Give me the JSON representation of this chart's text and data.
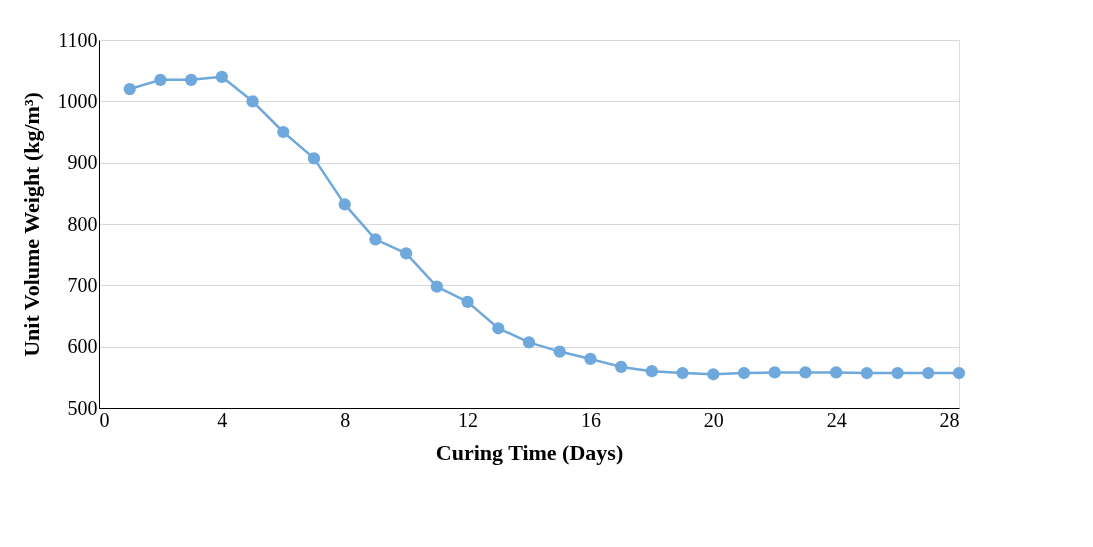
{
  "chart_data": {
    "type": "line",
    "xlabel": "Curing Time (Days)",
    "ylabel": "Unit Volume Weight (kg/m³)",
    "x": [
      1,
      2,
      3,
      4,
      5,
      6,
      7,
      8,
      9,
      10,
      11,
      12,
      13,
      14,
      15,
      16,
      17,
      18,
      19,
      20,
      21,
      22,
      23,
      24,
      25,
      26,
      27,
      28
    ],
    "series": [
      {
        "color": "#6fa8dc",
        "values": [
          1020,
          1035,
          1035,
          1040,
          1000,
          950,
          907,
          832,
          775,
          752,
          698,
          673,
          630,
          607,
          592,
          580,
          567,
          560,
          557,
          555,
          557,
          558,
          558,
          558,
          557,
          557,
          557,
          557
        ]
      }
    ],
    "xlim": [
      0,
      28
    ],
    "xticks": [
      0,
      4,
      8,
      12,
      16,
      20,
      24,
      28
    ],
    "ylim": [
      500,
      1100
    ],
    "yticks": [
      500,
      600,
      700,
      800,
      900,
      1000,
      1100
    ],
    "grid": "y",
    "marker": "circle",
    "line_style": "solid"
  }
}
